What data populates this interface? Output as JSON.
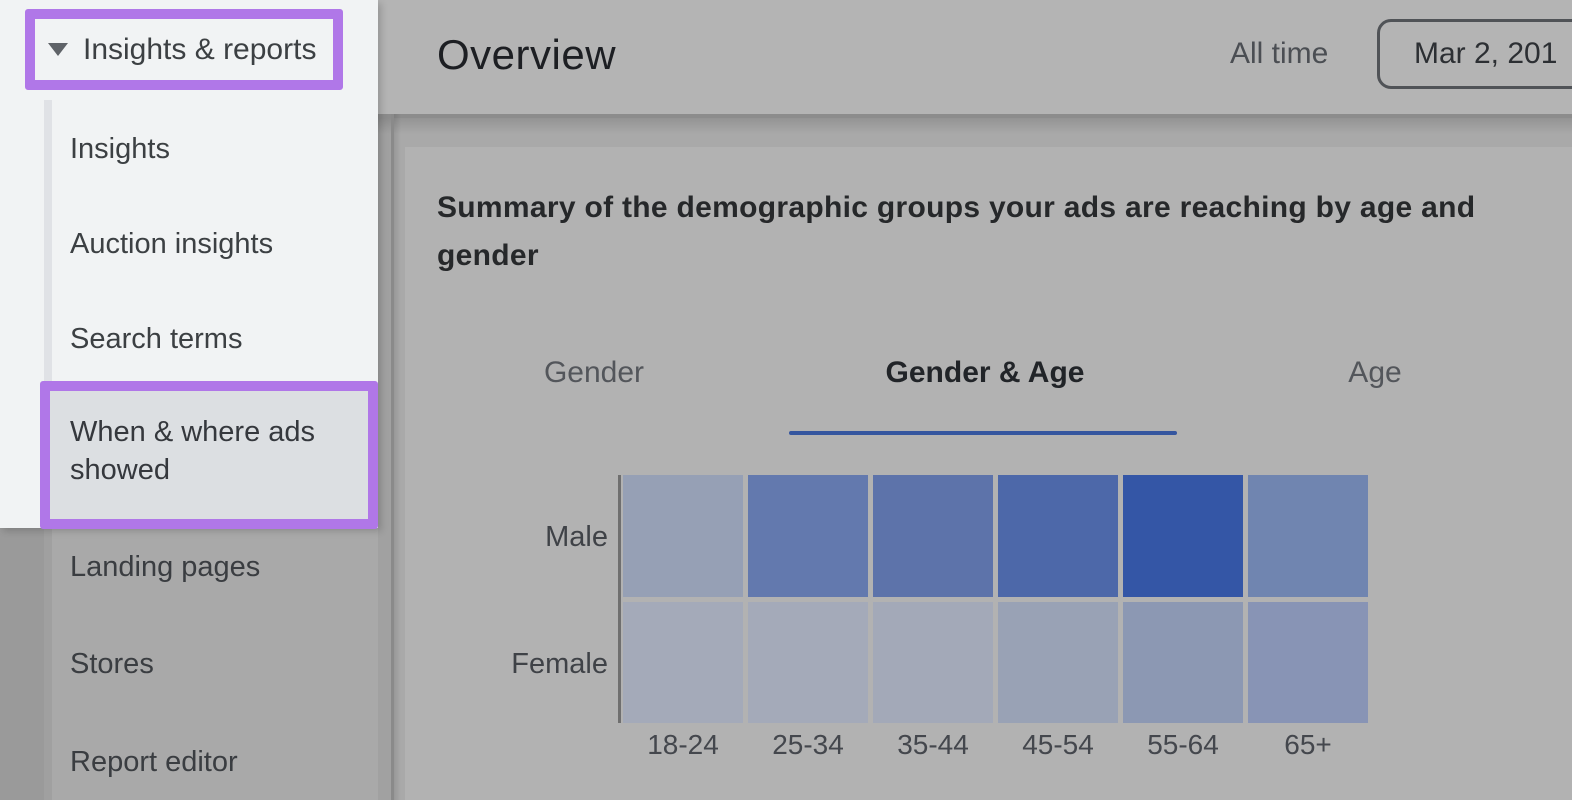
{
  "sidebar": {
    "section_label": "Insights & reports",
    "chevron_icon": "chevron-down",
    "items": [
      {
        "label": "Insights"
      },
      {
        "label": "Auction insights"
      },
      {
        "label": "Search terms"
      },
      {
        "label": "When & where ads showed"
      },
      {
        "label": "Landing pages"
      },
      {
        "label": "Stores"
      },
      {
        "label": "Report editor"
      }
    ],
    "selected_item": "When & where ads showed"
  },
  "header": {
    "title": "Overview",
    "range_label": "All time",
    "date_value": "Mar 2, 201"
  },
  "content": {
    "summary": "Summary of the demographic groups your ads are reaching by age and gender",
    "tabs": [
      {
        "label": "Gender",
        "active": false
      },
      {
        "label": "Gender & Age",
        "active": true
      },
      {
        "label": "Age",
        "active": false
      }
    ]
  },
  "chart_data": {
    "type": "heatmap",
    "title": "Summary of the demographic groups your ads are reaching by age and gender",
    "rows": [
      "Male",
      "Female"
    ],
    "columns": [
      "18-24",
      "25-34",
      "35-44",
      "45-54",
      "55-64",
      "65+"
    ],
    "cell_colors": [
      [
        "#96a0b5",
        "#6379ae",
        "#5d73aa",
        "#4d68a9",
        "#3456a6",
        "#7085b0"
      ],
      [
        "#a4aab9",
        "#a4aab9",
        "#a3a9b8",
        "#99a2b5",
        "#8c98b3",
        "#8894b5"
      ]
    ],
    "relative_intensity": [
      [
        0.3,
        0.65,
        0.68,
        0.75,
        0.95,
        0.55
      ],
      [
        0.18,
        0.18,
        0.19,
        0.28,
        0.38,
        0.42
      ]
    ],
    "legend": "none shown",
    "value_labels": "none shown"
  },
  "colors": {
    "highlight_purple": "#b077e8",
    "tab_underline_blue": "#35569f",
    "panel_bg": "#f1f3f4",
    "selected_item_bg": "#dcdfe2",
    "dim_overlay_gray": "#a9a9a9"
  }
}
